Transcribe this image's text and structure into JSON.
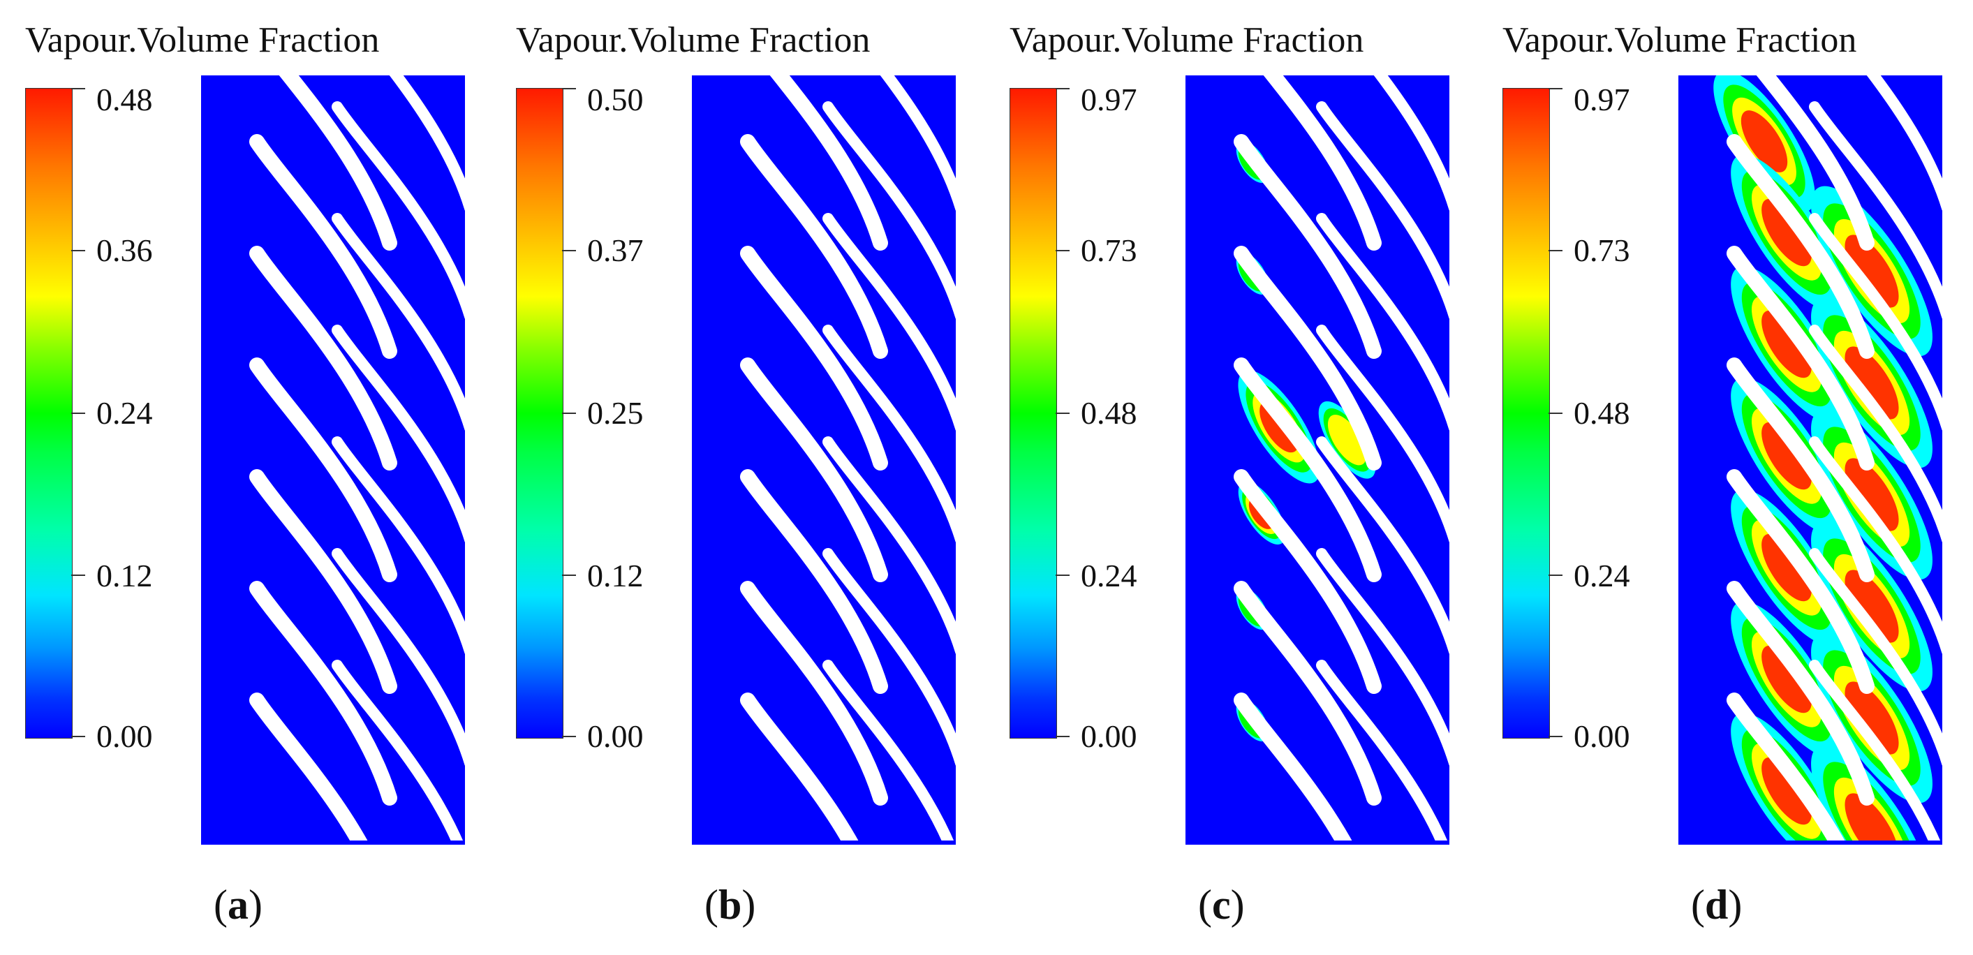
{
  "panels": [
    {
      "title": "Vapour.Volume Fraction",
      "label_letter": "a",
      "ticks": [
        "0.48",
        "0.36",
        "0.24",
        "0.12",
        "0.00"
      ],
      "vmax": 0.48,
      "cavitation": "none"
    },
    {
      "title": "Vapour.Volume Fraction",
      "label_letter": "b",
      "ticks": [
        "0.50",
        "0.37",
        "0.25",
        "0.12",
        "0.00"
      ],
      "vmax": 0.5,
      "cavitation": "trace"
    },
    {
      "title": "Vapour.Volume Fraction",
      "label_letter": "c",
      "ticks": [
        "0.97",
        "0.73",
        "0.48",
        "0.24",
        "0.00"
      ],
      "vmax": 0.97,
      "cavitation": "moderate"
    },
    {
      "title": "Vapour.Volume Fraction",
      "label_letter": "d",
      "ticks": [
        "0.97",
        "0.73",
        "0.48",
        "0.24",
        "0.00"
      ],
      "vmax": 0.97,
      "cavitation": "severe"
    }
  ],
  "colors": {
    "background": "#0000ff",
    "blade": "#ffffff",
    "vapour_low": "#00ffff",
    "vapour_mid": "#00ff00",
    "vapour_high": "#ffff00",
    "vapour_top": "#ff3300"
  }
}
